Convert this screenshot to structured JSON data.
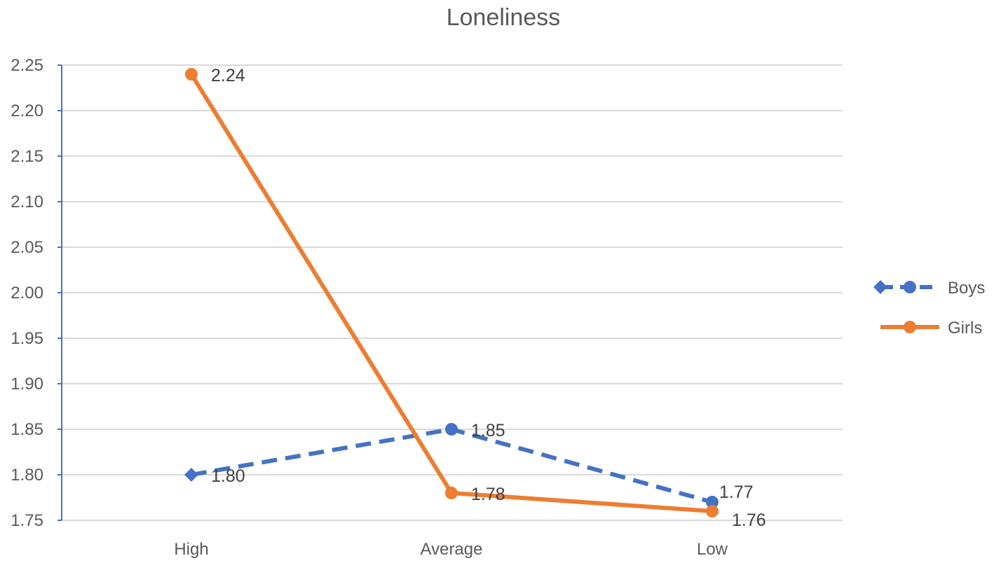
{
  "chart_data": {
    "type": "line",
    "title": "Loneliness",
    "xlabel": "",
    "ylabel": "",
    "categories": [
      "High",
      "Average",
      "Low"
    ],
    "ylim": [
      1.75,
      2.25
    ],
    "ytick_step": 0.05,
    "ytick_labels": [
      "1.75",
      "1.80",
      "1.85",
      "1.90",
      "1.95",
      "2.00",
      "2.05",
      "2.10",
      "2.15",
      "2.20",
      "2.25"
    ],
    "grid": true,
    "legend_position": "right",
    "series": [
      {
        "name": "Boys",
        "values": [
          1.8,
          1.85,
          1.77
        ],
        "labels": [
          "1.80",
          "1.85",
          "1.77"
        ],
        "color": "#4472c4",
        "dashed": true,
        "markers": [
          "diamond",
          "circle",
          "circle"
        ]
      },
      {
        "name": "Girls",
        "values": [
          2.24,
          1.78,
          1.76
        ],
        "labels": [
          "2.24",
          "1.78",
          "1.76"
        ],
        "color": "#ed7d31",
        "dashed": false,
        "markers": [
          "circle",
          "circle",
          "circle"
        ]
      }
    ]
  }
}
